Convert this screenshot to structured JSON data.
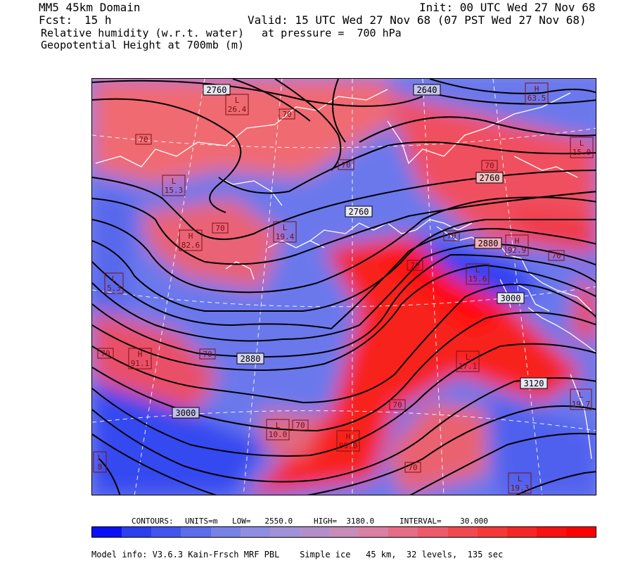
{
  "header": {
    "domain": "MM5 45km Domain",
    "init": "Init: 00 UTC Wed 27 Nov 68",
    "fcst_label": "Fcst:",
    "fcst_value": "15 h",
    "valid": "Valid: 15 UTC Wed 27 Nov 68 (07 PST Wed 27 Nov 68)",
    "field1": "Relative humidity (w.r.t. water)",
    "pressure": "at pressure =  700 hPa",
    "field2": "Geopotential Height at 700mb (m)"
  },
  "contour_info": {
    "label": "CONTOURS:",
    "units": "UNITS=m",
    "low": "LOW=   2550.0",
    "high": "HIGH=  3180.0",
    "interval": "INTERVAL=    30.000"
  },
  "footer": "Model info: V3.6.3 Kain-Frsch MRF PBL    Simple ice   45 km,  32 levels,  135 sec",
  "height_labels": [
    "2760",
    "2640",
    "2760",
    "2760",
    "2880",
    "3000",
    "2880",
    "3000",
    "3120"
  ],
  "rh_labels": [
    "70",
    "70",
    "70",
    "70",
    "70",
    "70",
    "70",
    "70",
    "70",
    "70",
    "70",
    "70",
    "70"
  ],
  "extrema": [
    {
      "kind": "H",
      "value": "63.5"
    },
    {
      "kind": "L",
      "value": "26.4"
    },
    {
      "kind": "L",
      "value": "15.0"
    },
    {
      "kind": "L",
      "value": "15.3"
    },
    {
      "kind": "H",
      "value": "82.6"
    },
    {
      "kind": "L",
      "value": "19.4"
    },
    {
      "kind": "H",
      "value": "92.9"
    },
    {
      "kind": "L",
      "value": "15.6"
    },
    {
      "kind": "L",
      "value": "5.3"
    },
    {
      "kind": "H",
      "value": "91.1"
    },
    {
      "kind": "L",
      "value": "17.1"
    },
    {
      "kind": "L",
      "value": "19.7"
    },
    {
      "kind": "L",
      "value": "10.0"
    },
    {
      "kind": "L",
      "value": "19.3"
    },
    {
      "kind": "L",
      "value": "8"
    },
    {
      "kind": "H",
      "value": "99.0"
    }
  ],
  "colorbar": [
    "#0a10f5",
    "#2b3ef0",
    "#4155ee",
    "#5b6cec",
    "#7782e8",
    "#8f8ee2",
    "#a091d8",
    "#b38fca",
    "#c88cb9",
    "#db80a2",
    "#e66d85",
    "#ee5a6a",
    "#f2484f",
    "#f53838",
    "#f72626",
    "#f91010",
    "#fb0000"
  ]
}
